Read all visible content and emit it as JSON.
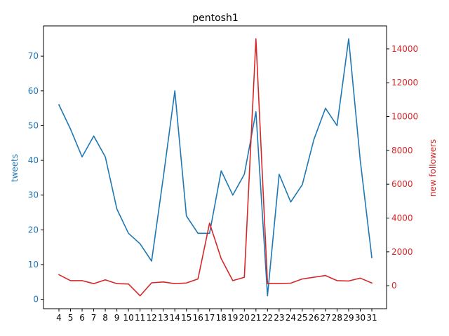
{
  "chart_data": {
    "type": "line",
    "title": "pentosh1",
    "xlabel": "",
    "categories": [
      "4",
      "5",
      "6",
      "7",
      "8",
      "9",
      "10",
      "11",
      "12",
      "13",
      "14",
      "15",
      "16",
      "17",
      "18",
      "19",
      "20",
      "21",
      "22",
      "23",
      "24",
      "25",
      "26",
      "27",
      "28",
      "29",
      "30",
      "31"
    ],
    "series": [
      {
        "name": "tweets",
        "axis": "left",
        "color": "#1f77b4",
        "values": [
          56,
          49,
          41,
          47,
          41,
          26,
          19,
          16,
          11,
          35,
          60,
          24,
          19,
          19,
          37,
          30,
          36,
          54,
          1,
          36,
          28,
          33,
          46,
          55,
          50,
          75,
          40,
          12
        ]
      },
      {
        "name": "new followers",
        "axis": "right",
        "color": "#d62728",
        "values": [
          650,
          300,
          300,
          120,
          350,
          120,
          100,
          -600,
          170,
          220,
          120,
          160,
          400,
          3700,
          1600,
          300,
          500,
          14600,
          120,
          120,
          150,
          400,
          500,
          600,
          300,
          280,
          450,
          160
        ]
      }
    ],
    "y_left": {
      "label": "tweets",
      "color": "#1f77b4",
      "ylim": [
        -2.7,
        78.7
      ],
      "ticks": [
        0,
        10,
        20,
        30,
        40,
        50,
        60,
        70
      ]
    },
    "y_right": {
      "label": "new followers",
      "color": "#d62728",
      "ylim": [
        -1360,
        15360
      ],
      "ticks": [
        0,
        2000,
        4000,
        6000,
        8000,
        10000,
        12000,
        14000
      ]
    },
    "grid": false,
    "legend": "none"
  }
}
